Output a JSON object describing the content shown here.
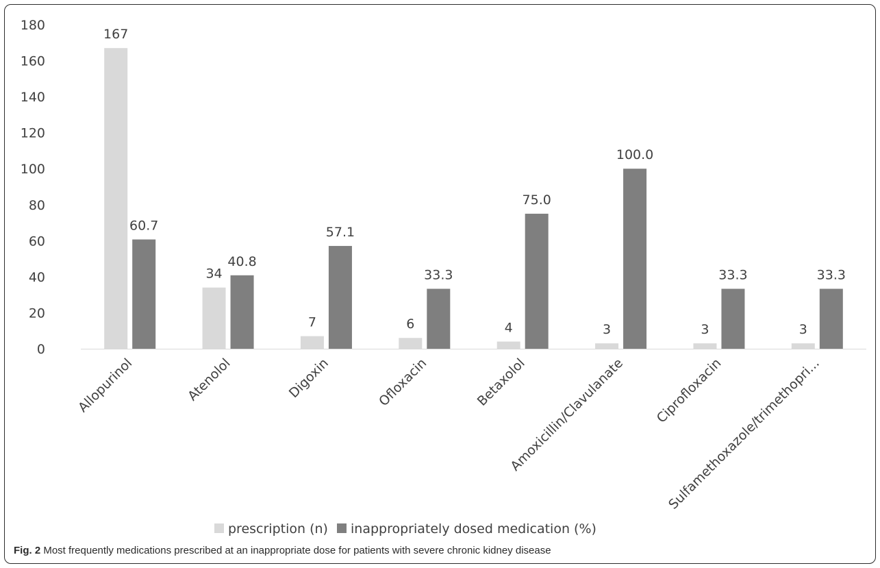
{
  "chart_data": {
    "type": "bar",
    "categories": [
      "Allopurinol",
      "Atenolol",
      "Digoxin",
      "Ofloxacin",
      "Betaxolol",
      "Amoxicillin/Clavulanate",
      "Ciprofloxacin",
      "Sulfamethoxazole/trimethopri..."
    ],
    "series": [
      {
        "name": "prescription (n)",
        "color": "#d9d9d9",
        "values": [
          167,
          34,
          7,
          6,
          4,
          3,
          3,
          3
        ],
        "labels": [
          "167",
          "34",
          "7",
          "6",
          "4",
          "3",
          "3",
          "3"
        ]
      },
      {
        "name": "inappropriately dosed medication (%)",
        "color": "#7f7f7f",
        "values": [
          60.7,
          40.8,
          57.1,
          33.3,
          75.0,
          100.0,
          33.3,
          33.3
        ],
        "labels": [
          "60.7",
          "40.8",
          "57.1",
          "33.3",
          "75.0",
          "100.0",
          "33.3",
          "33.3"
        ]
      }
    ],
    "ylim": [
      0,
      180
    ],
    "yticks": [
      0,
      20,
      40,
      60,
      80,
      100,
      120,
      140,
      160,
      180
    ],
    "grid": false,
    "legend": "bottom"
  },
  "caption": {
    "label": "Fig. 2",
    "text": " Most frequently medications prescribed at an inappropriate dose for patients with severe chronic kidney disease"
  }
}
